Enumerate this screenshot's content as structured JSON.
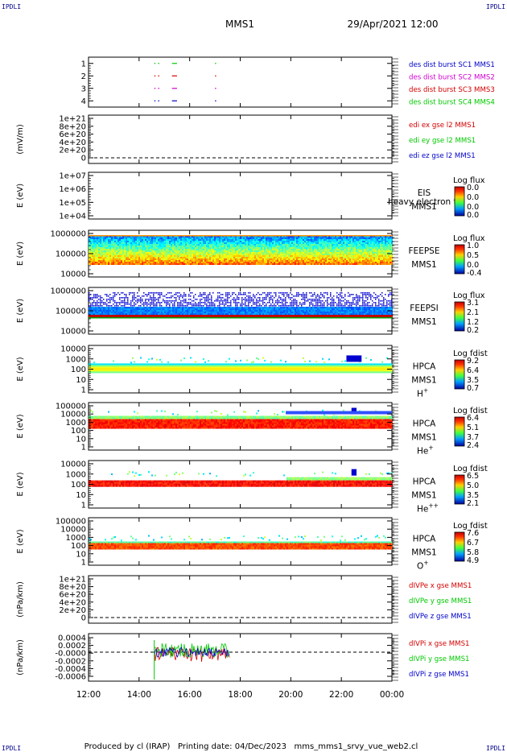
{
  "corner_label": "IPDLI",
  "header": {
    "mission": "MMS1",
    "datetime": "29/Apr/2021 12:00"
  },
  "footer": {
    "text": "Produced by cl (IRAP)   Printing date: 04/Dec/2023   mms_mms1_srvy_vue_web2.cl"
  },
  "colors": {
    "red": "#d40000",
    "green": "#00c800",
    "blue": "#0000c8",
    "magenta": "#d000d0",
    "line_black": "#000000"
  },
  "chart_data": {
    "type": "multi-panel time series",
    "x_ticks": [
      "12:00",
      "14:00",
      "16:00",
      "18:00",
      "20:00",
      "22:00",
      "00:00"
    ],
    "x_range_hours": [
      12,
      24
    ],
    "panels": [
      {
        "id": "dist-burst",
        "type": "scatter",
        "ylabel": "",
        "ylim": [
          0.5,
          4.5
        ],
        "yticks": [
          "1",
          "2",
          "3",
          "4"
        ],
        "legend": [
          {
            "text": "des dist burst SC1 MMS1",
            "color": "#0000c8"
          },
          {
            "text": "des dist burst SC2 MMS2",
            "color": "#d000d0"
          },
          {
            "text": "des dist burst SC3 MMS3",
            "color": "#d40000"
          },
          {
            "text": "des dist burst SC4 MMS4",
            "color": "#00c800"
          }
        ],
        "segments": [
          {
            "y": 4,
            "color": "#00c800",
            "times": [
              [
                14.6,
                14.65
              ],
              [
                14.75,
                14.8
              ],
              [
                15.3,
                15.5
              ],
              [
                17.0,
                17.05
              ]
            ]
          },
          {
            "y": 3,
            "color": "#d40000",
            "times": [
              [
                14.6,
                14.65
              ],
              [
                14.75,
                14.8
              ],
              [
                15.3,
                15.5
              ],
              [
                17.0,
                17.05
              ]
            ]
          },
          {
            "y": 2,
            "color": "#d000d0",
            "times": [
              [
                14.6,
                14.65
              ],
              [
                14.75,
                14.8
              ],
              [
                15.3,
                15.5
              ],
              [
                17.0,
                17.05
              ]
            ]
          },
          {
            "y": 1,
            "color": "#0000c8",
            "times": [
              [
                14.6,
                14.65
              ],
              [
                14.75,
                14.8
              ],
              [
                15.3,
                15.5
              ],
              [
                17.0,
                17.05
              ]
            ]
          }
        ]
      },
      {
        "id": "edi-e",
        "type": "line",
        "ylabel": "(mV/m)",
        "yticks": [
          "1e+21",
          "8e+20",
          "6e+20",
          "4e+20",
          "2e+20",
          "0"
        ],
        "legend": [
          {
            "text": "edi ex gse l2 MMS1",
            "color": "#d40000"
          },
          {
            "text": "edi ey gse l2 MMS1",
            "color": "#00c800"
          },
          {
            "text": "edi ez gse l2 MMS1",
            "color": "#0000c8"
          }
        ]
      },
      {
        "id": "eis",
        "type": "heatmap",
        "ylabel": "E (eV)",
        "yticks": [
          "1e+07",
          "1e+06",
          "1e+05",
          "1e+04"
        ],
        "instrument": [
          "EIS",
          "MMS1"
        ],
        "overlay": "heavy electron to",
        "colorbar": {
          "title": "Log flux",
          "labels": [
            "0.0",
            "0.0",
            "0.0",
            "0.0"
          ]
        }
      },
      {
        "id": "feepse",
        "type": "heatmap",
        "ylabel": "E (eV)",
        "yticks": [
          "1000000",
          "100000",
          "10000"
        ],
        "instrument": [
          "FEEPSE",
          "MMS1"
        ],
        "colorbar": {
          "title": "Log flux",
          "labels": [
            "1.0",
            "0.5",
            "0.0",
            "-0.4"
          ]
        }
      },
      {
        "id": "feepsi",
        "type": "heatmap",
        "ylabel": "E (eV)",
        "yticks": [
          "1000000",
          "100000",
          "10000"
        ],
        "instrument": [
          "FEEPSI",
          "MMS1"
        ],
        "colorbar": {
          "title": "Log flux",
          "labels": [
            "3.1",
            "2.1",
            "1.2",
            "0.2"
          ]
        }
      },
      {
        "id": "hpca-h",
        "type": "heatmap",
        "ylabel": "E (eV)",
        "yticks": [
          "10000",
          "1000",
          "100",
          "10",
          "1"
        ],
        "instrument": [
          "HPCA",
          "MMS1"
        ],
        "species": "H",
        "charge": "+",
        "colorbar": {
          "title": "Log fdist",
          "labels": [
            "9.2",
            "6.4",
            "3.5",
            "0.7"
          ]
        }
      },
      {
        "id": "hpca-he",
        "type": "heatmap",
        "ylabel": "E (eV)",
        "yticks": [
          "100000",
          "10000",
          "1000",
          "100",
          "10",
          "1"
        ],
        "instrument": [
          "HPCA",
          "MMS1"
        ],
        "species": "He",
        "charge": "+",
        "colorbar": {
          "title": "Log fdist",
          "labels": [
            "6.4",
            "5.1",
            "3.7",
            "2.4"
          ]
        }
      },
      {
        "id": "hpca-he2",
        "type": "heatmap",
        "ylabel": "E (eV)",
        "yticks": [
          "10000",
          "1000",
          "100",
          "10",
          "1"
        ],
        "instrument": [
          "HPCA",
          "MMS1"
        ],
        "species": "He",
        "charge": "++",
        "colorbar": {
          "title": "Log fdist",
          "labels": [
            "6.5",
            "5.0",
            "3.5",
            "2.1"
          ]
        }
      },
      {
        "id": "hpca-o",
        "type": "heatmap",
        "ylabel": "E (eV)",
        "yticks": [
          "100000",
          "10000",
          "1000",
          "100",
          "10",
          "1"
        ],
        "instrument": [
          "HPCA",
          "MMS1"
        ],
        "species": "O",
        "charge": "+",
        "colorbar": {
          "title": "Log fdist",
          "labels": [
            "7.6",
            "6.7",
            "5.8",
            "4.9"
          ]
        }
      },
      {
        "id": "divpe",
        "type": "line",
        "ylabel": "(nPa/km)",
        "yticks": [
          "1e+21",
          "8e+20",
          "6e+20",
          "4e+20",
          "2e+20",
          "0"
        ],
        "legend": [
          {
            "text": "dIVPe x gse MMS1",
            "color": "#d40000"
          },
          {
            "text": "dIVPe y gse MMS1",
            "color": "#00c800"
          },
          {
            "text": "dIVPe z gse MMS1",
            "color": "#0000c8"
          }
        ]
      },
      {
        "id": "divpi",
        "type": "line",
        "ylabel": "(nPa/km)",
        "yticks": [
          "0.0004",
          "0.0002",
          "-0.0000",
          "-0.0002",
          "-0.0004",
          "-0.0006"
        ],
        "data_time_range": [
          14.6,
          17.6
        ],
        "legend": [
          {
            "text": "dIVPi x gse MMS1",
            "color": "#d40000"
          },
          {
            "text": "dIVPi y gse MMS1",
            "color": "#00c800"
          },
          {
            "text": "dIVPi z gse MMS1",
            "color": "#0000c8"
          }
        ]
      }
    ]
  }
}
